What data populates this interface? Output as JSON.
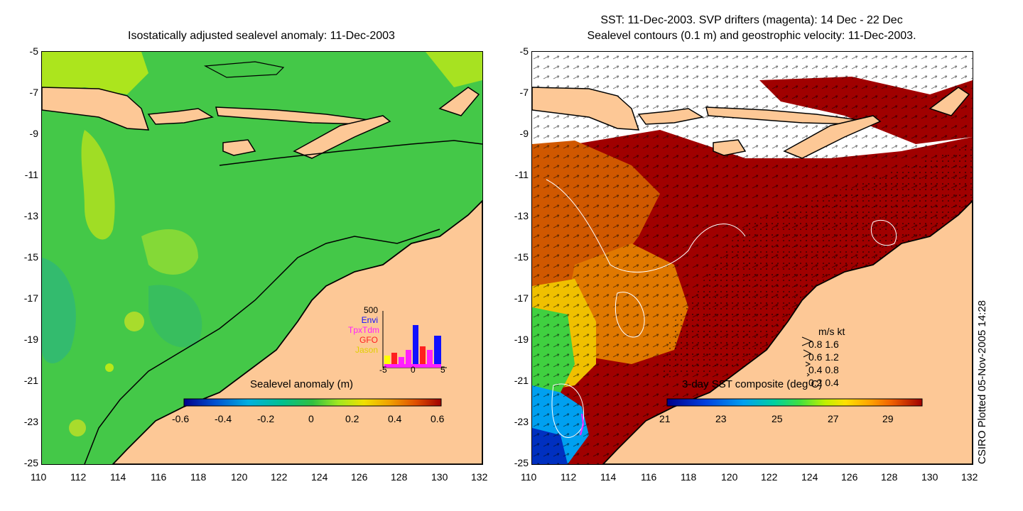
{
  "left": {
    "title": "Isostatically adjusted sealevel anomaly: 11-Dec-2003",
    "colorbar_label": "Sealevel anomaly (m)",
    "colorbar_ticks": [
      "-0.6",
      "-0.4",
      "-0.2",
      "0",
      "0.2",
      "0.4",
      "0.6"
    ],
    "colorbar_colors": [
      "#00008b",
      "#0050d0",
      "#00b0e0",
      "#00c090",
      "#20c040",
      "#60e020",
      "#c0f000",
      "#f0e000",
      "#f0a000",
      "#e05000",
      "#a00000"
    ],
    "sea_color": "#44c848",
    "land_color": "#fdc896",
    "inset": {
      "legend": [
        "Envi",
        "TpxTdm",
        "GFO",
        "Jason"
      ],
      "legend_colors": [
        "#1010ff",
        "#ff20ff",
        "#ff2020",
        "#ffff00"
      ],
      "y_tick": "500",
      "x_ticks": [
        "-5",
        "0",
        "5"
      ]
    }
  },
  "right": {
    "title_line1": "SST: 11-Dec-2003. SVP drifters (magenta): 14 Dec - 22 Dec",
    "title_line2": "Sealevel contours (0.1 m) and geostrophic velocity: 11-Dec-2003.",
    "colorbar_label": "3-day SST composite (deg C)",
    "colorbar_ticks": [
      "21",
      "23",
      "25",
      "27",
      "29"
    ],
    "colorbar_colors": [
      "#00008b",
      "#0040e0",
      "#00a0f0",
      "#00d0a0",
      "#40e040",
      "#c0f000",
      "#ffe000",
      "#ffa000",
      "#f06000",
      "#d02000",
      "#a00000"
    ],
    "velocity_legend": {
      "header": "m/s  kt",
      "rows": [
        "0.8  1.6",
        "0.6  1.2",
        "0.4  0.8",
        "0.2  0.4"
      ]
    }
  },
  "axes": {
    "y_ticks": [
      "-5",
      "-7",
      "-9",
      "-11",
      "-13",
      "-15",
      "-17",
      "-19",
      "-21",
      "-23",
      "-25"
    ],
    "x_ticks": [
      "110",
      "112",
      "114",
      "116",
      "118",
      "120",
      "122",
      "124",
      "126",
      "128",
      "130",
      "132"
    ]
  },
  "credit": "CSIRO Plotted 05-Nov-2005 14:28"
}
